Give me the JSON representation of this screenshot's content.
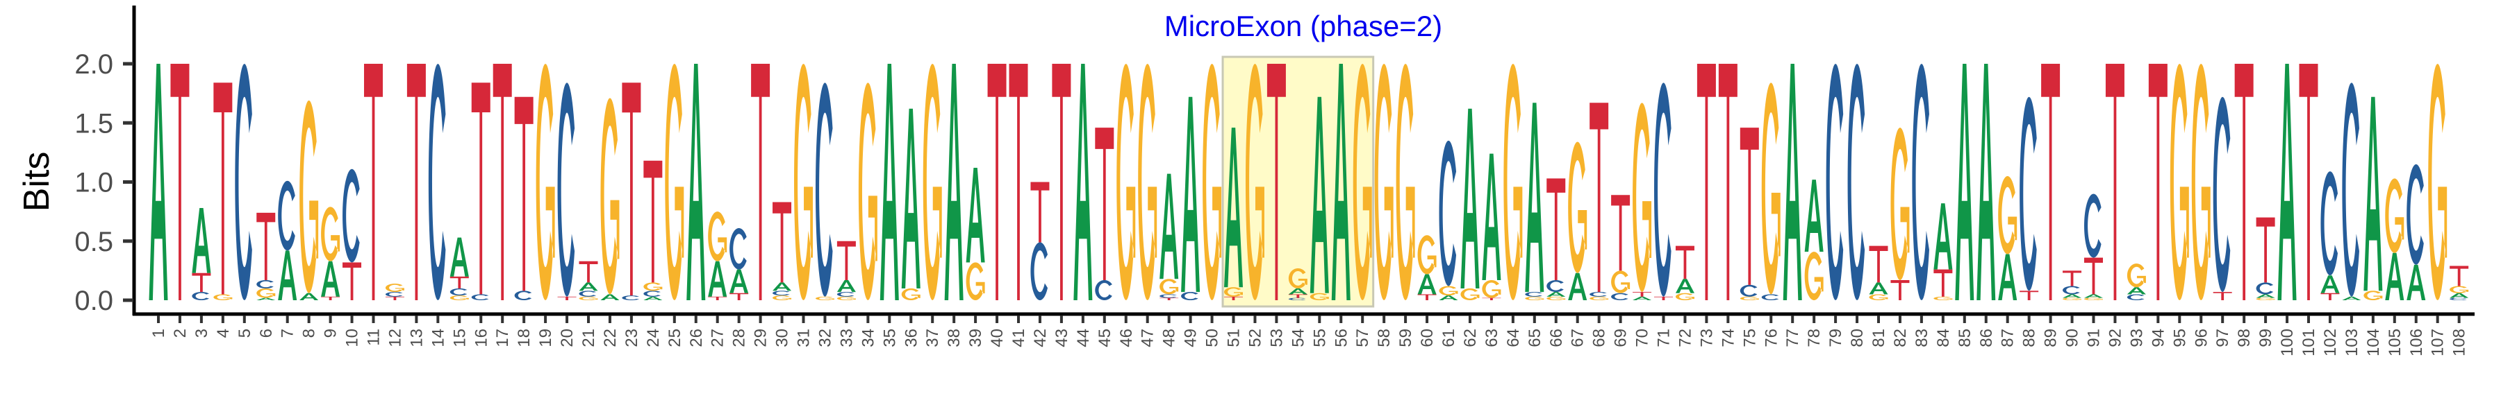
{
  "chart_data": {
    "type": "sequence-logo",
    "title": "MicroExon (phase=2)",
    "title_color": "#0000EE",
    "ylabel": "Bits",
    "xlabel": "",
    "ylim": [
      0,
      2
    ],
    "yticks": [
      "0.0",
      "0.5",
      "1.0",
      "1.5",
      "2.0"
    ],
    "grid": false,
    "letter_colors": {
      "A": "#109648",
      "C": "#255C99",
      "G": "#F7B32B",
      "T": "#D62839"
    },
    "highlight": {
      "from_position": 51,
      "to_position": 57,
      "fill": "#FFFBC8",
      "stroke": "#C8C8B4"
    },
    "categories": [
      "1",
      "2",
      "3",
      "4",
      "5",
      "6",
      "7",
      "8",
      "9",
      "10",
      "11",
      "12",
      "13",
      "14",
      "15",
      "16",
      "17",
      "18",
      "19",
      "20",
      "21",
      "22",
      "23",
      "24",
      "25",
      "26",
      "27",
      "28",
      "29",
      "30",
      "31",
      "32",
      "33",
      "34",
      "35",
      "36",
      "37",
      "38",
      "39",
      "40",
      "41",
      "42",
      "43",
      "44",
      "45",
      "46",
      "47",
      "48",
      "49",
      "50",
      "51",
      "52",
      "53",
      "54",
      "55",
      "56",
      "57",
      "58",
      "59",
      "60",
      "61",
      "62",
      "63",
      "64",
      "65",
      "66",
      "67",
      "68",
      "69",
      "70",
      "71",
      "72",
      "73",
      "74",
      "75",
      "76",
      "77",
      "78",
      "79",
      "80",
      "81",
      "82",
      "83",
      "84",
      "85",
      "86",
      "87",
      "88",
      "89",
      "90",
      "91",
      "92",
      "93",
      "94",
      "95",
      "96",
      "97",
      "98",
      "99",
      "100",
      "101",
      "102",
      "103",
      "104",
      "105",
      "106",
      "107",
      "108"
    ],
    "stacks_bottom_to_top": [
      [
        [
          "A",
          2.0
        ]
      ],
      [
        [
          "T",
          2.0
        ]
      ],
      [
        [
          "C",
          0.07
        ],
        [
          "T",
          0.16
        ],
        [
          "A",
          0.55
        ]
      ],
      [
        [
          "G",
          0.05
        ],
        [
          "T",
          1.79
        ]
      ],
      [
        [
          "C",
          2.0
        ]
      ],
      [
        [
          "A",
          0.02
        ],
        [
          "G",
          0.08
        ],
        [
          "C",
          0.07
        ],
        [
          "T",
          0.57
        ]
      ],
      [
        [
          "A",
          0.42
        ],
        [
          "C",
          0.59
        ]
      ],
      [
        [
          "A",
          0.06
        ],
        [
          "G",
          1.63
        ]
      ],
      [
        [
          "T",
          0.03
        ],
        [
          "A",
          0.3
        ],
        [
          "G",
          0.46
        ]
      ],
      [
        [
          "T",
          0.32
        ],
        [
          "C",
          0.79
        ]
      ],
      [
        [
          "T",
          2.0
        ]
      ],
      [
        [
          "T",
          0.03
        ],
        [
          "C",
          0.04
        ],
        [
          "G",
          0.07
        ]
      ],
      [
        [
          "T",
          2.0
        ]
      ],
      [
        [
          "C",
          2.0
        ]
      ],
      [
        [
          "G",
          0.04
        ],
        [
          "C",
          0.06
        ],
        [
          "T",
          0.1
        ],
        [
          "A",
          0.33
        ]
      ],
      [
        [
          "C",
          0.05
        ],
        [
          "T",
          1.79
        ]
      ],
      [
        [
          "T",
          2.0
        ]
      ],
      [
        [
          "C",
          0.08
        ],
        [
          "T",
          1.64
        ]
      ],
      [
        [
          "G",
          2.0
        ]
      ],
      [
        [
          "T",
          0.03
        ],
        [
          "C",
          1.81
        ]
      ],
      [
        [
          "G",
          0.03
        ],
        [
          "C",
          0.05
        ],
        [
          "A",
          0.07
        ],
        [
          "T",
          0.18
        ]
      ],
      [
        [
          "A",
          0.05
        ],
        [
          "G",
          1.66
        ]
      ],
      [
        [
          "C",
          0.04
        ],
        [
          "T",
          1.8
        ]
      ],
      [
        [
          "A",
          0.03
        ],
        [
          "C",
          0.05
        ],
        [
          "G",
          0.07
        ],
        [
          "T",
          1.03
        ]
      ],
      [
        [
          "G",
          2.0
        ]
      ],
      [
        [
          "A",
          2.0
        ]
      ],
      [
        [
          "T",
          0.03
        ],
        [
          "A",
          0.3
        ],
        [
          "G",
          0.42
        ]
      ],
      [
        [
          "T",
          0.06
        ],
        [
          "A",
          0.2
        ],
        [
          "C",
          0.35
        ]
      ],
      [
        [
          "T",
          2.0
        ]
      ],
      [
        [
          "G",
          0.04
        ],
        [
          "C",
          0.04
        ],
        [
          "A",
          0.07
        ],
        [
          "T",
          0.68
        ]
      ],
      [
        [
          "G",
          2.0
        ]
      ],
      [
        [
          "G",
          0.03
        ],
        [
          "C",
          1.81
        ]
      ],
      [
        [
          "G",
          0.03
        ],
        [
          "C",
          0.04
        ],
        [
          "A",
          0.1
        ],
        [
          "T",
          0.33
        ]
      ],
      [
        [
          "G",
          1.84
        ]
      ],
      [
        [
          "A",
          2.0
        ]
      ],
      [
        [
          "G",
          0.1
        ],
        [
          "A",
          1.52
        ]
      ],
      [
        [
          "G",
          2.0
        ]
      ],
      [
        [
          "A",
          2.0
        ]
      ],
      [
        [
          "G",
          0.32
        ],
        [
          "A",
          0.8
        ]
      ],
      [
        [
          "T",
          2.0
        ]
      ],
      [
        [
          "T",
          2.0
        ]
      ],
      [
        [
          "C",
          0.49
        ],
        [
          "T",
          0.51
        ]
      ],
      [
        [
          "T",
          2.0
        ]
      ],
      [
        [
          "A",
          2.0
        ]
      ],
      [
        [
          "C",
          0.17
        ],
        [
          "T",
          1.29
        ]
      ],
      [
        [
          "G",
          2.0
        ]
      ],
      [
        [
          "G",
          2.0
        ]
      ],
      [
        [
          "T",
          0.02
        ],
        [
          "C",
          0.03
        ],
        [
          "G",
          0.13
        ],
        [
          "A",
          0.89
        ]
      ],
      [
        [
          "C",
          0.07
        ],
        [
          "A",
          1.65
        ]
      ],
      [
        [
          "G",
          2.0
        ]
      ],
      [
        [
          "T",
          0.03
        ],
        [
          "G",
          0.08
        ],
        [
          "A",
          1.35
        ]
      ],
      [
        [
          "G",
          2.0
        ]
      ],
      [
        [
          "T",
          2.0
        ]
      ],
      [
        [
          "C",
          0.02
        ],
        [
          "T",
          0.03
        ],
        [
          "A",
          0.05
        ],
        [
          "G",
          0.17
        ]
      ],
      [
        [
          "G",
          0.06
        ],
        [
          "A",
          1.66
        ]
      ],
      [
        [
          "A",
          2.0
        ]
      ],
      [
        [
          "G",
          2.0
        ]
      ],
      [
        [
          "G",
          2.0
        ]
      ],
      [
        [
          "G",
          2.0
        ]
      ],
      [
        [
          "T",
          0.05
        ],
        [
          "A",
          0.17
        ],
        [
          "G",
          0.33
        ]
      ],
      [
        [
          "A",
          0.04
        ],
        [
          "G",
          0.08
        ],
        [
          "C",
          1.23
        ]
      ],
      [
        [
          "G",
          0.1
        ],
        [
          "A",
          1.52
        ]
      ],
      [
        [
          "T",
          0.02
        ],
        [
          "G",
          0.15
        ],
        [
          "A",
          1.07
        ]
      ],
      [
        [
          "G",
          2.0
        ]
      ],
      [
        [
          "G",
          0.03
        ],
        [
          "C",
          0.04
        ],
        [
          "A",
          1.6
        ]
      ],
      [
        [
          "G",
          0.03
        ],
        [
          "A",
          0.04
        ],
        [
          "C",
          0.1
        ],
        [
          "T",
          0.86
        ]
      ],
      [
        [
          "A",
          0.23
        ],
        [
          "G",
          1.11
        ]
      ],
      [
        [
          "G",
          0.03
        ],
        [
          "C",
          0.04
        ],
        [
          "T",
          1.6
        ]
      ],
      [
        [
          "C",
          0.06
        ],
        [
          "G",
          0.19
        ],
        [
          "T",
          0.64
        ]
      ],
      [
        [
          "A",
          0.03
        ],
        [
          "T",
          0.04
        ],
        [
          "G",
          1.6
        ]
      ],
      [
        [
          "T",
          0.03
        ],
        [
          "C",
          1.81
        ]
      ],
      [
        [
          "G",
          0.06
        ],
        [
          "A",
          0.12
        ],
        [
          "T",
          0.28
        ]
      ],
      [
        [
          "T",
          2.0
        ]
      ],
      [
        [
          "T",
          2.0
        ]
      ],
      [
        [
          "G",
          0.03
        ],
        [
          "C",
          0.1
        ],
        [
          "T",
          1.33
        ]
      ],
      [
        [
          "C",
          0.05
        ],
        [
          "G",
          1.79
        ]
      ],
      [
        [
          "A",
          2.0
        ]
      ],
      [
        [
          "G",
          0.41
        ],
        [
          "A",
          0.61
        ]
      ],
      [
        [
          "C",
          2.0
        ]
      ],
      [
        [
          "C",
          2.0
        ]
      ],
      [
        [
          "G",
          0.05
        ],
        [
          "A",
          0.1
        ],
        [
          "T",
          0.31
        ]
      ],
      [
        [
          "T",
          0.17
        ],
        [
          "G",
          1.29
        ]
      ],
      [
        [
          "C",
          2.0
        ]
      ],
      [
        [
          "G",
          0.03
        ],
        [
          "T",
          0.23
        ],
        [
          "A",
          0.56
        ]
      ],
      [
        [
          "A",
          2.0
        ]
      ],
      [
        [
          "A",
          2.0
        ]
      ],
      [
        [
          "A",
          0.39
        ],
        [
          "G",
          0.66
        ]
      ],
      [
        [
          "T",
          0.08
        ],
        [
          "C",
          1.64
        ]
      ],
      [
        [
          "T",
          2.0
        ]
      ],
      [
        [
          "G",
          0.02
        ],
        [
          "A",
          0.03
        ],
        [
          "C",
          0.07
        ],
        [
          "T",
          0.13
        ]
      ],
      [
        [
          "G",
          0.02
        ],
        [
          "A",
          0.03
        ],
        [
          "T",
          0.31
        ],
        [
          "C",
          0.54
        ]
      ],
      [
        [
          "T",
          2.0
        ]
      ],
      [
        [
          "C",
          0.05
        ],
        [
          "A",
          0.06
        ],
        [
          "G",
          0.2
        ]
      ],
      [
        [
          "T",
          2.0
        ]
      ],
      [
        [
          "G",
          2.0
        ]
      ],
      [
        [
          "G",
          2.0
        ]
      ],
      [
        [
          "T",
          0.07
        ],
        [
          "C",
          1.65
        ]
      ],
      [
        [
          "T",
          2.0
        ]
      ],
      [
        [
          "G",
          0.02
        ],
        [
          "A",
          0.03
        ],
        [
          "C",
          0.1
        ],
        [
          "T",
          0.55
        ]
      ],
      [
        [
          "A",
          2.0
        ]
      ],
      [
        [
          "T",
          2.0
        ]
      ],
      [
        [
          "T",
          0.06
        ],
        [
          "A",
          0.15
        ],
        [
          "C",
          0.88
        ]
      ],
      [
        [
          "A",
          0.03
        ],
        [
          "C",
          1.81
        ]
      ],
      [
        [
          "G",
          0.08
        ],
        [
          "A",
          1.64
        ]
      ],
      [
        [
          "A",
          0.4
        ],
        [
          "G",
          0.63
        ]
      ],
      [
        [
          "A",
          0.3
        ],
        [
          "C",
          0.85
        ]
      ],
      [
        [
          "G",
          2.0
        ]
      ],
      [
        [
          "C",
          0.02
        ],
        [
          "A",
          0.04
        ],
        [
          "G",
          0.06
        ],
        [
          "T",
          0.17
        ]
      ]
    ]
  }
}
